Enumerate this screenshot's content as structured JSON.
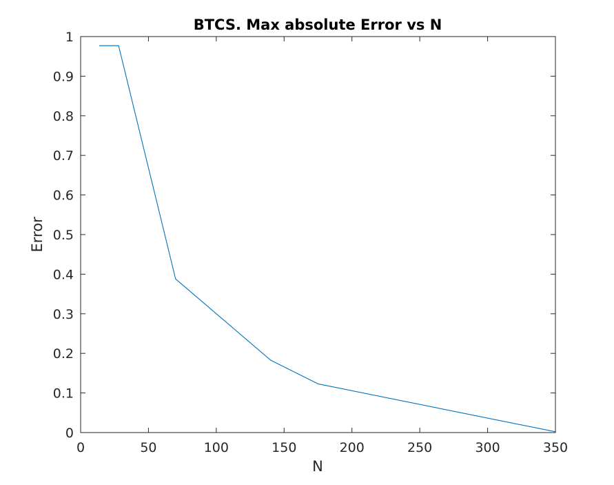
{
  "chart_data": {
    "type": "line",
    "title": "BTCS. Max absolute Error vs N",
    "xlabel": "N",
    "ylabel": "Error",
    "xlim": [
      0,
      350
    ],
    "ylim": [
      0,
      1
    ],
    "xticks": [
      0,
      50,
      100,
      150,
      200,
      250,
      300,
      350
    ],
    "yticks": [
      0,
      0.1,
      0.2,
      0.3,
      0.4,
      0.5,
      0.6,
      0.7,
      0.8,
      0.9,
      1
    ],
    "xtick_labels": [
      "0",
      "50",
      "100",
      "150",
      "200",
      "250",
      "300",
      "350"
    ],
    "ytick_labels": [
      "0",
      "0.1",
      "0.2",
      "0.3",
      "0.4",
      "0.5",
      "0.6",
      "0.7",
      "0.8",
      "0.9",
      "1"
    ],
    "grid": false,
    "series": [
      {
        "name": "Max absolute error",
        "color": "#0072BD",
        "x": [
          14,
          28,
          70,
          140,
          175,
          350
        ],
        "y": [
          0.977,
          0.977,
          0.388,
          0.183,
          0.123,
          0.002
        ]
      }
    ]
  }
}
